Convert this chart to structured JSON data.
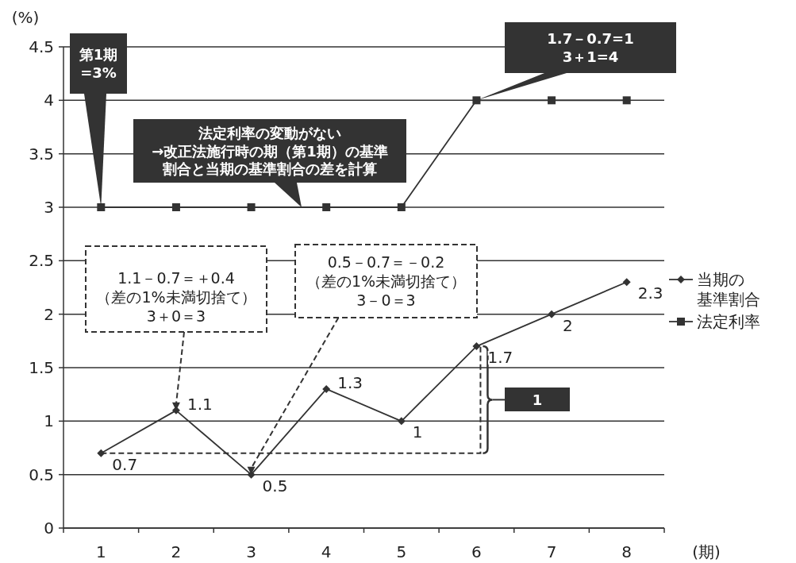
{
  "chart_data": {
    "type": "line",
    "xlabel": "(期)",
    "ylabel": "(%)",
    "categories": [
      "1",
      "2",
      "3",
      "4",
      "5",
      "6",
      "7",
      "8"
    ],
    "series": [
      {
        "name": "当期の基準割合",
        "color": "#333333",
        "marker": "diamond",
        "values": [
          0.7,
          1.1,
          0.5,
          1.3,
          1,
          1.7,
          2,
          2.3
        ],
        "value_labels": [
          "0.7",
          "1.1",
          "0.5",
          "1.3",
          "1",
          "1.7",
          "2",
          "2.3"
        ]
      },
      {
        "name": "法定利率",
        "color": "#333333",
        "marker": "square",
        "values": [
          3,
          3,
          3,
          3,
          3,
          4,
          4,
          4
        ]
      }
    ],
    "ylim": [
      0,
      4.5
    ],
    "yticks": [
      0,
      0.5,
      1,
      1.5,
      2,
      2.5,
      3,
      3.5,
      4,
      4.5
    ],
    "grid": "y",
    "legend": "right",
    "line_style": "solid",
    "annotations": [
      {
        "text": "第1期\n=3%",
        "x": "1",
        "y": 3
      },
      "法定利率の変動がない→改正法施行時の期（第1期）の基準割合と当期の基準割合の差を計算",
      {
        "text": "1.7－0.7=1\n3＋1=4",
        "x": "6",
        "y": 4
      },
      {
        "text": "1.1－0.7＝＋0.4\n（差の1%未満切捨て）\n3＋0＝3",
        "x": "2",
        "y": 1.1
      },
      {
        "text": "0.5－0.7＝－0.2\n（差の1%未満切捨て）\n3－0＝3",
        "x": "3",
        "y": 0.5
      },
      "1"
    ]
  }
}
